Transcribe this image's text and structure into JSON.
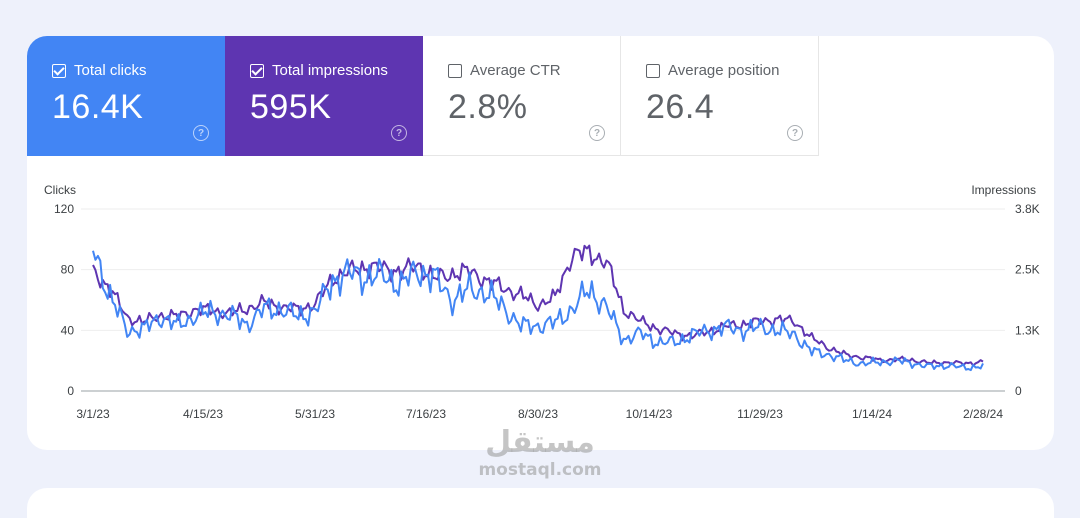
{
  "metrics": [
    {
      "label": "Total clicks",
      "value": "16.4K",
      "checked": true,
      "color": "#4285f4"
    },
    {
      "label": "Total impressions",
      "value": "595K",
      "checked": true,
      "color": "#5e35b1"
    },
    {
      "label": "Average CTR",
      "value": "2.8%",
      "checked": false
    },
    {
      "label": "Average position",
      "value": "26.4",
      "checked": false
    }
  ],
  "help_glyph": "?",
  "chart_data": {
    "type": "line",
    "left_axis_label": "Clicks",
    "right_axis_label": "Impressions",
    "left_ticks": [
      "0",
      "40",
      "80",
      "120"
    ],
    "left_ylim": [
      0,
      120
    ],
    "right_ticks": [
      "0",
      "1.3K",
      "2.5K",
      "3.8K"
    ],
    "right_ylim": [
      0,
      3800
    ],
    "x_ticks": [
      "3/1/23",
      "4/15/23",
      "5/31/23",
      "7/16/23",
      "8/30/23",
      "10/14/23",
      "11/29/23",
      "1/14/24",
      "2/28/24"
    ],
    "x_range": [
      "2023-03-01",
      "2024-02-28"
    ],
    "grid": true,
    "series": [
      {
        "axis": "right",
        "color": "#5e35b1",
        "values_by_week": [
          2480,
          2150,
          1520,
          1450,
          1580,
          1560,
          1700,
          1680,
          1620,
          1720,
          1850,
          1750,
          1700,
          1820,
          2350,
          2500,
          2600,
          2550,
          2500,
          2620,
          2350,
          2450,
          2500,
          2300,
          2150,
          2000,
          1800,
          1950,
          2850,
          2880,
          2700,
          1700,
          1450,
          1300,
          1200,
          1150,
          1250,
          1350,
          1400,
          1450,
          1500,
          1450,
          1100,
          900,
          750,
          700,
          640,
          660,
          640,
          580,
          600,
          570,
          620
        ]
      },
      {
        "axis": "left",
        "color": "#4285f4",
        "values_by_week": [
          95,
          62,
          40,
          41,
          49,
          43,
          50,
          52,
          50,
          44,
          54,
          54,
          49,
          53,
          73,
          78,
          75,
          76,
          70,
          80,
          74,
          60,
          67,
          65,
          55,
          43,
          43,
          45,
          54,
          67,
          55,
          34,
          38,
          32,
          32,
          37,
          40,
          42,
          40,
          42,
          40,
          37,
          26,
          24,
          20,
          18,
          19,
          20,
          18,
          16,
          17,
          15,
          17
        ]
      }
    ]
  },
  "watermark": {
    "arabic": "مستقل",
    "latin": "mostaql.com"
  }
}
